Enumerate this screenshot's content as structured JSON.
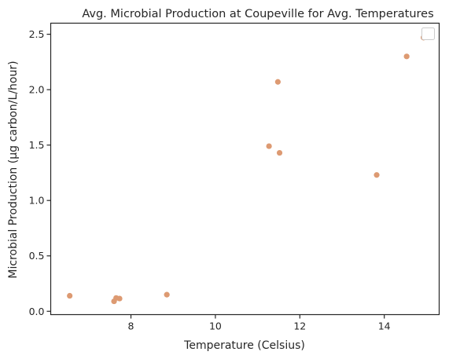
{
  "chart_data": {
    "type": "scatter",
    "title": "Avg. Microbial Production at Coupeville for Avg. Temperatures",
    "xlabel": "Temperature (Celsius)",
    "ylabel": "Microbial Production (µg carbon/L/hour)",
    "xlim": [
      6.1,
      15.3
    ],
    "ylim": [
      -0.03,
      2.6
    ],
    "xticks": [
      8,
      10,
      12,
      14
    ],
    "yticks": [
      0.0,
      0.5,
      1.0,
      1.5,
      2.0,
      2.5
    ],
    "xtick_labels": [
      "8",
      "10",
      "12",
      "14"
    ],
    "ytick_labels": [
      "0.0",
      "0.5",
      "1.0",
      "1.5",
      "2.0",
      "2.5"
    ],
    "legend": "top-right (empty)",
    "grid": false,
    "marker_color": "#dd9a72",
    "points": [
      {
        "x": 6.55,
        "y": 0.14
      },
      {
        "x": 7.6,
        "y": 0.09
      },
      {
        "x": 7.65,
        "y": 0.12
      },
      {
        "x": 7.73,
        "y": 0.115
      },
      {
        "x": 8.85,
        "y": 0.15
      },
      {
        "x": 11.27,
        "y": 1.49
      },
      {
        "x": 11.48,
        "y": 2.07
      },
      {
        "x": 11.52,
        "y": 1.43
      },
      {
        "x": 13.82,
        "y": 1.23
      },
      {
        "x": 14.53,
        "y": 2.3
      },
      {
        "x": 14.93,
        "y": 2.47
      }
    ]
  }
}
